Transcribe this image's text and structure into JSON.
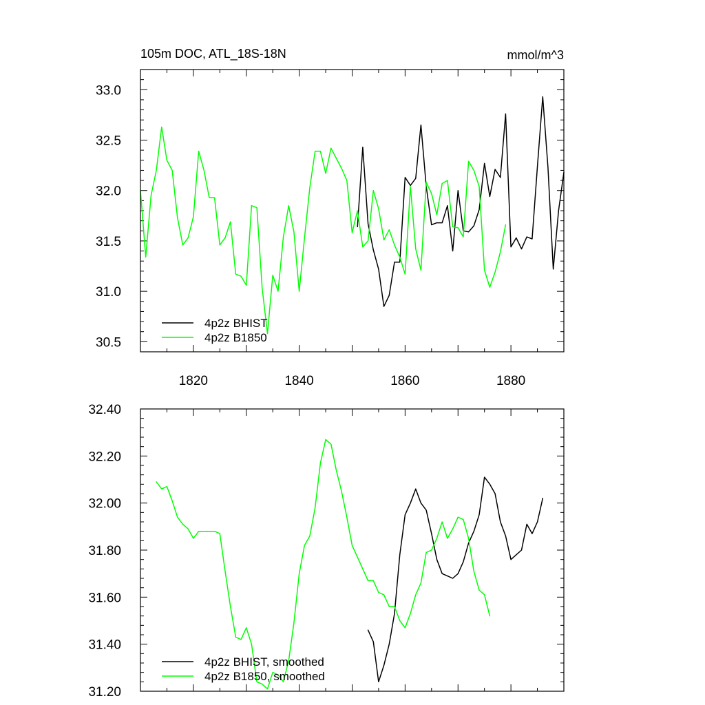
{
  "chart_data": [
    {
      "type": "line",
      "title": "105m DOC, ATL_18S-18N",
      "units": "mmol/m^3",
      "xlim": [
        1810,
        1890
      ],
      "ylim": [
        30.4,
        33.2
      ],
      "x_tick_labels": [
        "1820",
        "1840",
        "1860",
        "1880"
      ],
      "y_tick_labels": [
        "30.5",
        "31.0",
        "31.5",
        "32.0",
        "32.5",
        "33.0"
      ],
      "legend_position": "bottom-left",
      "series": [
        {
          "name": "4p2z BHIST",
          "color": "#000000",
          "x_start": 1851,
          "values": [
            31.64,
            32.43,
            31.67,
            31.41,
            31.22,
            30.85,
            30.96,
            31.29,
            31.29,
            32.13,
            32.05,
            32.12,
            32.65,
            32.04,
            31.66,
            31.68,
            31.68,
            31.85,
            31.4,
            32.0,
            31.6,
            31.59,
            31.65,
            31.81,
            32.27,
            31.94,
            32.21,
            32.13,
            32.76,
            31.44,
            31.53,
            31.42,
            31.54,
            31.52,
            32.24,
            32.93,
            32.23,
            31.22,
            31.8,
            32.18
          ]
        },
        {
          "name": "4p2z B1850",
          "color": "#00ff00",
          "x_start": 1810,
          "values": [
            32.0,
            31.34,
            31.95,
            32.2,
            32.63,
            32.3,
            32.2,
            31.73,
            31.46,
            31.53,
            31.74,
            32.39,
            32.2,
            31.93,
            31.93,
            31.46,
            31.53,
            31.69,
            31.17,
            31.15,
            31.06,
            31.85,
            31.83,
            31.03,
            30.58,
            31.16,
            31.0,
            31.54,
            31.85,
            31.59,
            31.0,
            31.53,
            32.03,
            32.39,
            32.39,
            32.17,
            32.42,
            32.32,
            32.22,
            32.1,
            31.58,
            31.8,
            31.44,
            31.5,
            32.0,
            31.82,
            31.51,
            31.61,
            31.46,
            31.34,
            31.17,
            32.04,
            31.42,
            31.21,
            32.08,
            31.97,
            31.76,
            32.07,
            32.1,
            31.64,
            31.63,
            31.54,
            32.29,
            32.2,
            32.04,
            31.21,
            31.04,
            31.19,
            31.39,
            31.66
          ]
        }
      ]
    },
    {
      "type": "line",
      "title": "",
      "xlim": [
        1810,
        1890
      ],
      "ylim": [
        31.2,
        32.4
      ],
      "y_tick_labels": [
        "31.20",
        "31.40",
        "31.60",
        "31.80",
        "32.00",
        "32.20",
        "32.40"
      ],
      "legend_position": "bottom-left",
      "series": [
        {
          "name": "4p2z BHIST, smoothed",
          "color": "#000000",
          "x_start": 1853,
          "values": [
            31.46,
            31.41,
            31.24,
            31.31,
            31.4,
            31.53,
            31.78,
            31.95,
            32.0,
            32.06,
            32.0,
            31.97,
            31.87,
            31.76,
            31.7,
            31.69,
            31.68,
            31.7,
            31.75,
            31.83,
            31.88,
            31.95,
            32.11,
            32.08,
            32.04,
            31.92,
            31.86,
            31.76,
            31.78,
            31.8,
            31.91,
            31.87,
            31.92,
            32.02
          ]
        },
        {
          "name": "4p2z B1850, smoothed",
          "color": "#00ff00",
          "x_start": 1813,
          "values": [
            32.09,
            32.06,
            32.07,
            32.01,
            31.94,
            31.91,
            31.89,
            31.85,
            31.88,
            31.88,
            31.88,
            31.88,
            31.87,
            31.71,
            31.56,
            31.43,
            31.42,
            31.47,
            31.4,
            31.24,
            31.23,
            31.21,
            31.28,
            31.27,
            31.24,
            31.33,
            31.49,
            31.7,
            31.82,
            31.86,
            31.98,
            32.17,
            32.27,
            32.25,
            32.14,
            32.05,
            31.94,
            31.82,
            31.77,
            31.72,
            31.67,
            31.67,
            31.62,
            31.61,
            31.56,
            31.56,
            31.5,
            31.47,
            31.53,
            31.61,
            31.66,
            31.79,
            31.8,
            31.85,
            31.92,
            31.85,
            31.89,
            31.94,
            31.93,
            31.85,
            31.71,
            31.63,
            31.61,
            31.52
          ]
        }
      ]
    }
  ]
}
